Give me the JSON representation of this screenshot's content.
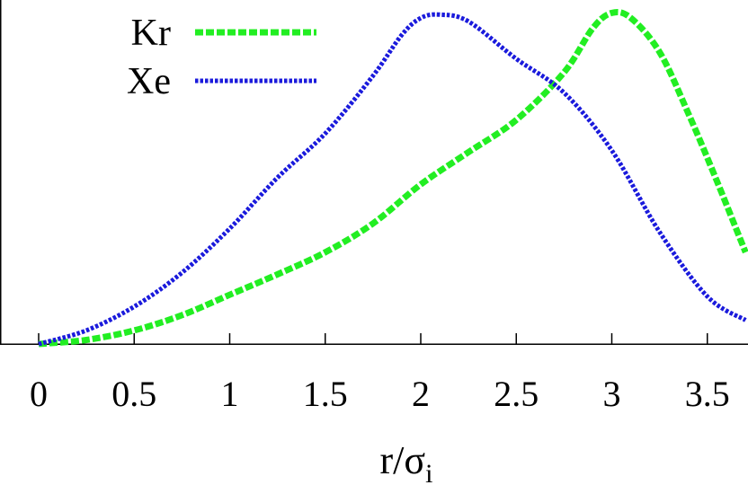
{
  "chart_data": {
    "type": "line",
    "title": "",
    "xlabel": "r/σ",
    "xlabel_subscript": "i",
    "ylabel": "",
    "xlim": [
      -0.05,
      3.7
    ],
    "ylim": [
      0,
      1.0
    ],
    "grid": false,
    "legend_position": "top-left",
    "x_ticks": [
      "0",
      "0.5",
      "1",
      "1.5",
      "2",
      "2.5",
      "3",
      "3.5"
    ],
    "series": [
      {
        "name": "Kr",
        "color": "#22ee22",
        "dash": "dashed",
        "x": [
          0,
          0.25,
          0.5,
          0.75,
          1.0,
          1.25,
          1.5,
          1.75,
          2.0,
          2.25,
          2.5,
          2.75,
          2.9,
          3.0,
          3.1,
          3.25,
          3.4,
          3.55,
          3.7
        ],
        "y": [
          0,
          0.012,
          0.04,
          0.085,
          0.145,
          0.205,
          0.27,
          0.355,
          0.47,
          0.565,
          0.66,
          0.8,
          0.93,
          0.975,
          0.96,
          0.86,
          0.68,
          0.48,
          0.27
        ]
      },
      {
        "name": "Xe",
        "color": "#1a1adc",
        "dash": "dotted",
        "x": [
          0,
          0.25,
          0.5,
          0.75,
          1.0,
          1.25,
          1.5,
          1.75,
          1.9,
          2.0,
          2.1,
          2.25,
          2.5,
          2.75,
          3.0,
          3.25,
          3.5,
          3.7
        ],
        "y": [
          0,
          0.04,
          0.11,
          0.21,
          0.34,
          0.49,
          0.62,
          0.79,
          0.91,
          0.96,
          0.97,
          0.95,
          0.84,
          0.74,
          0.57,
          0.33,
          0.14,
          0.07
        ]
      }
    ]
  }
}
